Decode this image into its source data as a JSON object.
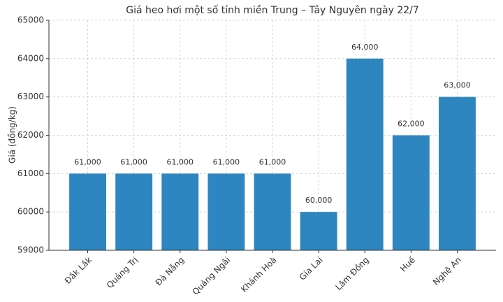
{
  "chart_data": {
    "type": "bar",
    "title": "Giá heo hơi một số tỉnh miền Trung – Tây Nguyên ngày 22/7",
    "y_label": "Giá (đồng/kg)",
    "categories": [
      "Đắk Lắk",
      "Quảng Trị",
      "Đà Nẵng",
      "Quảng Ngãi",
      "Khánh Hoà",
      "Gia Lai",
      "Lâm Đồng",
      "Huế",
      "Nghệ An"
    ],
    "values": [
      61000,
      61000,
      61000,
      61000,
      61000,
      60000,
      64000,
      62000,
      63000
    ],
    "value_labels": [
      "61,000",
      "61,000",
      "61,000",
      "61,000",
      "61,000",
      "60,000",
      "64,000",
      "62,000",
      "63,000"
    ],
    "color": "#2e86c1",
    "ylim": [
      59000,
      65000
    ],
    "yticks": [
      59000,
      60000,
      61000,
      62000,
      63000,
      64000,
      65000
    ],
    "grid": true
  }
}
